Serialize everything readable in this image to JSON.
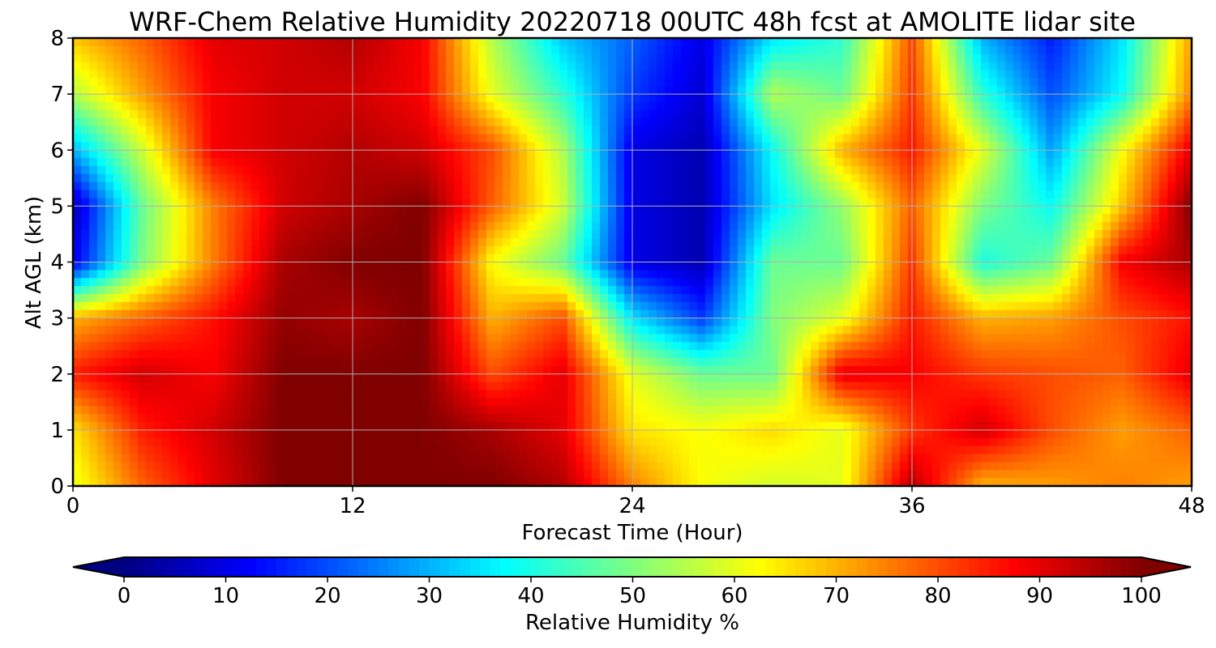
{
  "chart_data": {
    "type": "heatmap",
    "title": "WRF-Chem Relative Humidity 20220718 00UTC 48h fcst at AMOLITE lidar site",
    "xlabel": "Forecast Time (Hour)",
    "ylabel": "Alt AGL (km)",
    "xlim": [
      0,
      48
    ],
    "ylim": [
      0,
      8
    ],
    "xticks": [
      "0",
      "12",
      "24",
      "36",
      "48"
    ],
    "yticks": [
      "0",
      "1",
      "2",
      "3",
      "4",
      "5",
      "6",
      "7",
      "8"
    ],
    "grid": true,
    "colormap": "jet",
    "colorbar": {
      "label": "Relative Humidity %",
      "range": [
        0,
        100
      ],
      "ticks": [
        "0",
        "10",
        "20",
        "30",
        "40",
        "50",
        "60",
        "70",
        "80",
        "90",
        "100"
      ],
      "extend": "both",
      "orientation": "horizontal"
    },
    "x": [
      0,
      3,
      6,
      9,
      12,
      15,
      18,
      21,
      24,
      27,
      30,
      33,
      36,
      39,
      42,
      45,
      48
    ],
    "y": [
      0,
      1,
      2,
      3,
      4,
      5,
      6,
      7,
      8
    ],
    "z": [
      [
        60,
        78,
        90,
        100,
        100,
        100,
        100,
        95,
        75,
        62,
        58,
        60,
        95,
        70,
        72,
        75,
        72
      ],
      [
        65,
        85,
        92,
        100,
        100,
        100,
        96,
        90,
        65,
        62,
        66,
        60,
        82,
        92,
        80,
        72,
        78
      ],
      [
        85,
        92,
        88,
        100,
        100,
        100,
        80,
        90,
        60,
        48,
        48,
        90,
        88,
        82,
        80,
        78,
        90
      ],
      [
        70,
        78,
        86,
        98,
        96,
        100,
        70,
        80,
        35,
        18,
        50,
        60,
        85,
        70,
        72,
        80,
        86
      ],
      [
        10,
        50,
        75,
        96,
        100,
        100,
        62,
        48,
        10,
        5,
        48,
        48,
        82,
        40,
        48,
        88,
        96
      ],
      [
        5,
        48,
        75,
        92,
        96,
        100,
        78,
        58,
        10,
        5,
        35,
        52,
        78,
        50,
        38,
        68,
        100
      ],
      [
        30,
        58,
        88,
        92,
        95,
        92,
        80,
        55,
        10,
        5,
        38,
        70,
        85,
        60,
        28,
        62,
        90
      ],
      [
        55,
        72,
        88,
        92,
        92,
        88,
        60,
        42,
        18,
        8,
        55,
        48,
        82,
        42,
        20,
        38,
        75
      ],
      [
        68,
        78,
        90,
        92,
        95,
        88,
        55,
        32,
        22,
        10,
        35,
        42,
        80,
        30,
        15,
        35,
        72
      ]
    ]
  }
}
